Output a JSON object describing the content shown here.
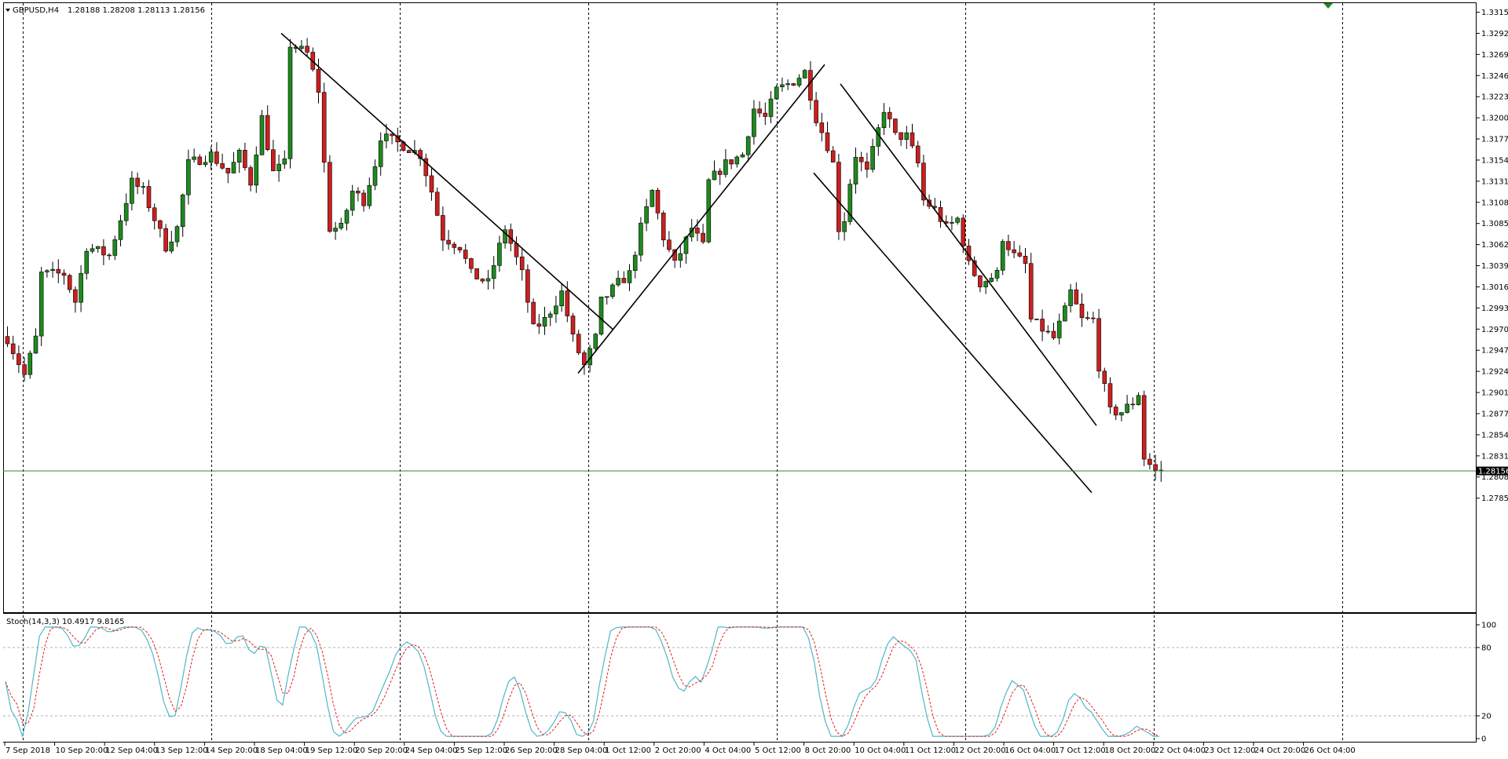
{
  "header": {
    "symbol": "GBPUSD,H4",
    "ohlc": "1.28188 1.28208 1.28113 1.28156",
    "arrow": "down-triangle-icon"
  },
  "indicator": {
    "label": "Stoch(14,3,3) 10.4917 9.8165",
    "levels": [
      "100",
      "80",
      "20",
      "0"
    ]
  },
  "price_axis": {
    "ticks": [
      "1.33150",
      "1.32920",
      "1.32690",
      "1.32460",
      "1.32230",
      "1.32000",
      "1.31770",
      "1.31540",
      "1.31310",
      "1.31080",
      "1.30850",
      "1.30620",
      "1.30390",
      "1.30160",
      "1.29930",
      "1.29700",
      "1.29470",
      "1.29240",
      "1.29010",
      "1.28775",
      "1.28545",
      "1.28315",
      "1.28085",
      "1.27855"
    ],
    "current": "1.28156"
  },
  "time_axis": {
    "ticks": [
      "7 Sep 2018",
      "10 Sep 20:00",
      "12 Sep 04:00",
      "13 Sep 12:00",
      "14 Sep 20:00",
      "18 Sep 04:00",
      "19 Sep 12:00",
      "20 Sep 20:00",
      "24 Sep 04:00",
      "25 Sep 12:00",
      "26 Sep 20:00",
      "28 Sep 04:00",
      "1 Oct 12:00",
      "2 Oct 20:00",
      "4 Oct 04:00",
      "5 Oct 12:00",
      "8 Oct 20:00",
      "10 Oct 04:00",
      "11 Oct 12:00",
      "12 Oct 20:00",
      "16 Oct 04:00",
      "17 Oct 12:00",
      "18 Oct 20:00",
      "22 Oct 04:00",
      "23 Oct 12:00",
      "24 Oct 20:00",
      "26 Oct 04:00"
    ]
  },
  "colors": {
    "bull": "#1e8a1e",
    "bear": "#cc1f1f",
    "stoch_main": "#4fb8c8",
    "stoch_signal": "#e02020",
    "current_line": "#2e8b2e"
  },
  "chart_data": {
    "type": "candlestick",
    "symbol": "GBPUSD",
    "timeframe": "H4",
    "ylim": [
      1.2775,
      1.3325
    ],
    "key_prices": [
      {
        "label": "19 Sep 12:00",
        "price": 1.3292
      },
      {
        "label": "4 Oct 04:00",
        "price": 1.2922
      },
      {
        "label": "11 Oct 12:00",
        "price": 1.3258
      },
      {
        "label": "26 Oct 04:00",
        "price": 1.28
      }
    ],
    "path": [
      [
        0,
        1.296
      ],
      [
        3,
        1.292
      ],
      [
        5,
        1.296
      ],
      [
        6,
        1.303
      ],
      [
        10,
        1.303
      ],
      [
        12,
        1.3
      ],
      [
        14,
        1.306
      ],
      [
        18,
        1.305
      ],
      [
        22,
        1.313
      ],
      [
        24,
        1.312
      ],
      [
        26,
        1.309
      ],
      [
        28,
        1.306
      ],
      [
        30,
        1.308
      ],
      [
        32,
        1.315
      ],
      [
        36,
        1.316
      ],
      [
        39,
        1.314
      ],
      [
        41,
        1.316
      ],
      [
        43,
        1.313
      ],
      [
        45,
        1.32
      ],
      [
        47,
        1.314
      ],
      [
        49,
        1.315
      ],
      [
        50,
        1.328
      ],
      [
        53,
        1.327
      ],
      [
        55,
        1.323
      ],
      [
        56,
        1.315
      ],
      [
        57,
        1.308
      ],
      [
        59,
        1.308
      ],
      [
        61,
        1.312
      ],
      [
        63,
        1.311
      ],
      [
        65,
        1.315
      ],
      [
        66,
        1.318
      ],
      [
        70,
        1.317
      ],
      [
        73,
        1.316
      ],
      [
        75,
        1.312
      ],
      [
        77,
        1.307
      ],
      [
        80,
        1.306
      ],
      [
        82,
        1.303
      ],
      [
        85,
        1.302
      ],
      [
        88,
        1.308
      ],
      [
        91,
        1.303
      ],
      [
        93,
        1.297
      ],
      [
        95,
        1.298
      ],
      [
        98,
        1.301
      ],
      [
        100,
        1.296
      ],
      [
        102,
        1.293
      ],
      [
        104,
        1.296
      ],
      [
        105,
        1.3
      ],
      [
        108,
        1.302
      ],
      [
        110,
        1.303
      ],
      [
        112,
        1.308
      ],
      [
        114,
        1.312
      ],
      [
        116,
        1.307
      ],
      [
        118,
        1.304
      ],
      [
        121,
        1.308
      ],
      [
        123,
        1.306
      ],
      [
        124,
        1.313
      ],
      [
        127,
        1.315
      ],
      [
        130,
        1.316
      ],
      [
        132,
        1.321
      ],
      [
        134,
        1.32
      ],
      [
        136,
        1.323
      ],
      [
        139,
        1.324
      ],
      [
        141,
        1.325
      ],
      [
        143,
        1.32
      ],
      [
        145,
        1.317
      ],
      [
        146,
        1.315
      ],
      [
        147,
        1.308
      ],
      [
        148,
        1.309
      ],
      [
        149,
        1.313
      ],
      [
        150,
        1.316
      ],
      [
        152,
        1.314
      ],
      [
        155,
        1.321
      ],
      [
        157,
        1.318
      ],
      [
        159,
        1.318
      ],
      [
        161,
        1.315
      ],
      [
        162,
        1.311
      ],
      [
        164,
        1.31
      ],
      [
        166,
        1.308
      ],
      [
        168,
        1.309
      ],
      [
        170,
        1.304
      ],
      [
        172,
        1.302
      ],
      [
        175,
        1.303
      ],
      [
        176,
        1.307
      ],
      [
        178,
        1.305
      ],
      [
        180,
        1.304
      ],
      [
        181,
        1.298
      ],
      [
        183,
        1.297
      ],
      [
        185,
        1.296
      ],
      [
        187,
        1.299
      ],
      [
        188,
        1.301
      ],
      [
        190,
        1.298
      ],
      [
        192,
        1.298
      ],
      [
        193,
        1.293
      ],
      [
        195,
        1.288
      ],
      [
        197,
        1.288
      ],
      [
        199,
        1.289
      ],
      [
        200,
        1.29
      ],
      [
        201,
        1.283
      ],
      [
        203,
        1.2815
      ],
      [
        204,
        1.2816
      ]
    ],
    "stochastic": {
      "params": "14,3,3",
      "main": 10.4917,
      "signal": 9.8165,
      "ylim": [
        0,
        100
      ],
      "levels": [
        80,
        20
      ]
    }
  }
}
